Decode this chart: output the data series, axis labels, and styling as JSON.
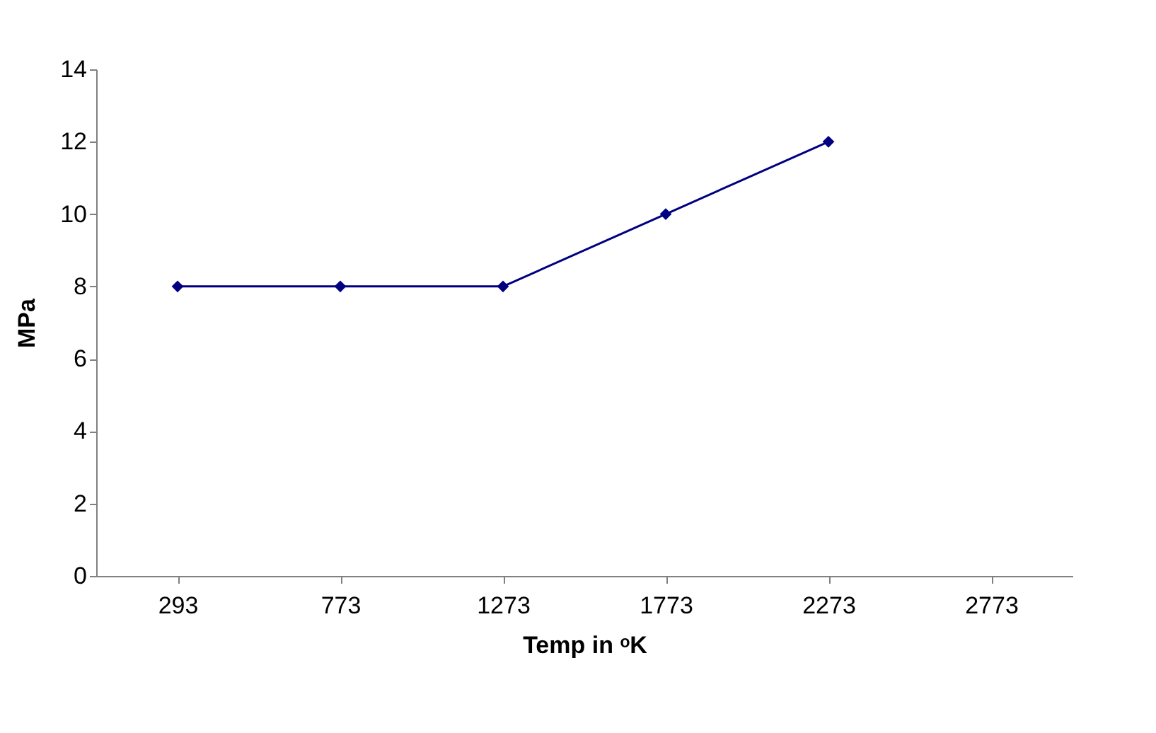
{
  "chart_data": {
    "type": "line",
    "xlabel": "Temp in ᵒK",
    "ylabel": "MPa",
    "categories": [
      "293",
      "773",
      "1273",
      "1773",
      "2273",
      "2773"
    ],
    "series": [
      {
        "color": "#000080",
        "values": [
          8,
          8,
          8,
          10,
          12,
          null
        ]
      }
    ],
    "ylim": [
      0,
      14
    ],
    "yticks": [
      0,
      2,
      4,
      6,
      8,
      10,
      12,
      14
    ],
    "grid": false,
    "marker": "diamond",
    "line_style": "solid"
  }
}
